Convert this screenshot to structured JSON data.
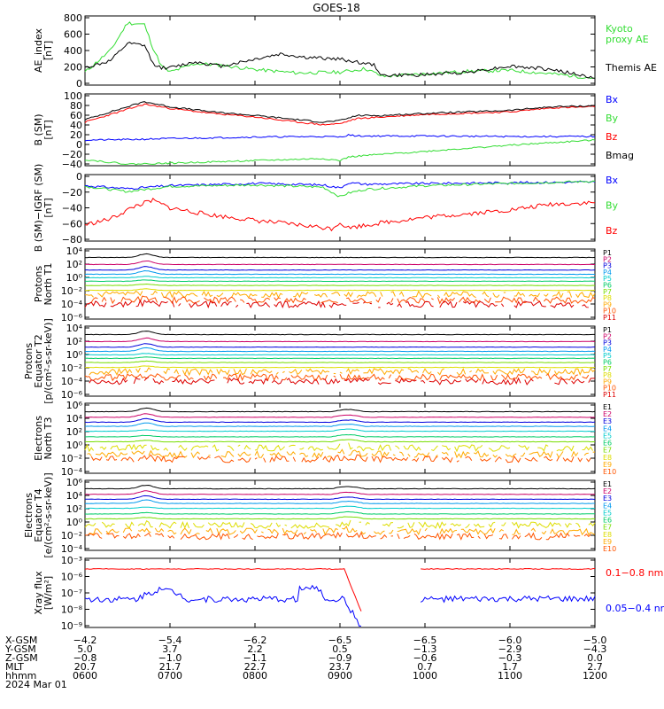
{
  "title": "GOES-18",
  "colors": {
    "black": "#000000",
    "red": "#ff0000",
    "green": "#33dd33",
    "blue": "#0000ff",
    "P": [
      "#000000",
      "#cc0066",
      "#0000dd",
      "#0099ee",
      "#00cccc",
      "#00cc66",
      "#77dd00",
      "#dddd00",
      "#ffaa00",
      "#ff5500",
      "#dd0000"
    ],
    "E": [
      "#000000",
      "#cc0066",
      "#0000dd",
      "#0099ee",
      "#00cccc",
      "#00cc66",
      "#77dd00",
      "#dddd00",
      "#ffaa00",
      "#ff5500",
      "#cc0000"
    ]
  },
  "panels": [
    {
      "id": "ae",
      "ylabel": [
        "AE_index",
        "[nT]"
      ],
      "ticks": [
        "800",
        "600",
        "400",
        "200",
        "0"
      ],
      "labels": [
        {
          "t": "Kyoto",
          "c": "green"
        },
        {
          "t": "proxy AE",
          "c": "green"
        },
        {
          "t": "Themis AE",
          "c": "black"
        }
      ]
    },
    {
      "id": "bsm",
      "ylabel": [
        "B (SM)",
        "[nT]"
      ],
      "ticks": [
        "100",
        "80",
        "60",
        "40",
        "20",
        "0",
        "−20",
        "−40"
      ],
      "labels": [
        {
          "t": "Bx",
          "c": "blue"
        },
        {
          "t": "By",
          "c": "green"
        },
        {
          "t": "Bz",
          "c": "red"
        },
        {
          "t": "Bmag",
          "c": "black"
        }
      ]
    },
    {
      "id": "bigrf",
      "ylabel": [
        "B (SM)−IGRF (SM)",
        "[nT]"
      ],
      "ticks": [
        "0",
        "−20",
        "−40",
        "−60",
        "−80"
      ],
      "labels": [
        {
          "t": "Bx",
          "c": "blue"
        },
        {
          "t": "By",
          "c": "green"
        },
        {
          "t": "Bz",
          "c": "red"
        }
      ]
    },
    {
      "id": "pn",
      "ylabel": [
        "Protons",
        "North T1"
      ],
      "ticks": [
        "10⁴",
        "10²",
        "10⁰",
        "10⁻²",
        "10⁻⁴",
        "10⁻⁶"
      ],
      "labels": [
        "P1",
        "P2",
        "P3",
        "P4",
        "P5",
        "P6",
        "P7",
        "P8",
        "P9",
        "P10",
        "P11"
      ]
    },
    {
      "id": "pe",
      "ylabel": [
        "Protons",
        "Equator T2",
        "[p/(cm²-s-sr-keV)]"
      ],
      "ticks": [
        "10⁴",
        "10²",
        "10⁰",
        "10⁻²",
        "10⁻⁴",
        "10⁻⁶"
      ],
      "labels": [
        "P1",
        "P2",
        "P3",
        "P4",
        "P5",
        "P6",
        "P7",
        "P8",
        "P9",
        "P10",
        "P11"
      ]
    },
    {
      "id": "en",
      "ylabel": [
        "Electrons",
        "North T3"
      ],
      "ticks": [
        "10⁶",
        "10⁴",
        "10²",
        "10⁰",
        "10⁻²",
        "10⁻⁴"
      ],
      "labels": [
        "E1",
        "E2",
        "E3",
        "E4",
        "E5",
        "E6",
        "E7",
        "E8",
        "E9",
        "E10"
      ]
    },
    {
      "id": "ee",
      "ylabel": [
        "Electrons",
        "Equator T4",
        "[e/(cm²-s-sr-keV)]"
      ],
      "ticks": [
        "10⁶",
        "10⁴",
        "10²",
        "10⁰",
        "10⁻²",
        "10⁻⁴"
      ],
      "labels": [
        "E1",
        "E2",
        "E3",
        "E4",
        "E5",
        "E6",
        "E7",
        "E8",
        "E9",
        "E10"
      ]
    },
    {
      "id": "xr",
      "ylabel": [
        "Xray flux",
        "[W/m²]"
      ],
      "ticks": [
        "10⁻³",
        "10⁻⁶",
        "10⁻⁷",
        "10⁻⁸",
        "10⁻⁹"
      ],
      "labels": [
        {
          "t": "0.1−0.8 nm",
          "c": "red"
        },
        {
          "t": "0.05−0.4 nm",
          "c": "blue"
        }
      ]
    }
  ],
  "ephemeris": {
    "rows": [
      "X-GSM",
      "Y-GSM",
      "Z-GSM",
      "MLT",
      "hhmm"
    ],
    "date": "2024 Mar 01",
    "columns": [
      [
        "−4.2",
        "5.0",
        "−0.8",
        "20.7",
        "0600"
      ],
      [
        "−5.4",
        "3.7",
        "−1.0",
        "21.7",
        "0700"
      ],
      [
        "−6.2",
        "2.2",
        "−1.1",
        "22.7",
        "0800"
      ],
      [
        "−6.5",
        "0.5",
        "−0.9",
        "23.7",
        "0900"
      ],
      [
        "−6.5",
        "−1.3",
        "−0.6",
        "0.7",
        "1000"
      ],
      [
        "−6.0",
        "−2.9",
        "−0.3",
        "1.7",
        "1100"
      ],
      [
        "−5.0",
        "−4.3",
        "0.0",
        "2.7",
        "1200"
      ]
    ]
  },
  "chart_data": {
    "type": "line",
    "title": "GOES-18",
    "x": [
      "0600",
      "0700",
      "0800",
      "0900",
      "1000",
      "1100",
      "1200"
    ],
    "panels": [
      {
        "name": "AE_index",
        "ylim": [
          0,
          800
        ],
        "series": [
          {
            "name": "Kyoto proxy AE",
            "color": "green",
            "x": [
              0,
              0.3,
              0.5,
              0.7,
              0.8,
              0.9,
              1.0,
              1.3,
              1.6,
              2.0,
              2.5,
              3.0,
              3.3,
              3.5,
              4.0,
              4.5,
              5.0,
              5.5,
              6.0
            ],
            "values": [
              150,
              400,
              720,
              700,
              430,
              220,
              150,
              250,
              230,
              180,
              140,
              150,
              190,
              100,
              130,
              160,
              170,
              130,
              80
            ]
          },
          {
            "name": "Themis AE",
            "color": "black",
            "x": [
              0,
              0.3,
              0.5,
              0.7,
              0.8,
              0.9,
              1.0,
              1.3,
              1.6,
              2.0,
              2.3,
              2.6,
              3.0,
              3.3,
              3.4,
              3.5,
              4.0,
              4.5,
              5.0,
              5.5,
              6.0
            ],
            "values": [
              200,
              280,
              480,
              460,
              250,
              200,
              200,
              270,
              220,
              300,
              360,
              320,
              300,
              250,
              230,
              110,
              120,
              150,
              220,
              180,
              80
            ]
          }
        ]
      },
      {
        "name": "B (SM)",
        "ylim": [
          -40,
          100
        ],
        "series": [
          {
            "name": "Bx",
            "color": "blue",
            "x": [
              0,
              0.5,
              1.0,
              2.0,
              2.8,
              3.0,
              3.1,
              3.2,
              4.0,
              5.0,
              6.0
            ],
            "values": [
              10,
              11,
              13,
              16,
              17,
              16,
              20,
              18,
              18,
              17,
              17
            ]
          },
          {
            "name": "By",
            "color": "green",
            "x": [
              0,
              0.5,
              1.0,
              2.0,
              2.8,
              3.0,
              3.1,
              3.3,
              4.0,
              5.0,
              6.0
            ],
            "values": [
              -28,
              -37,
              -35,
              -30,
              -26,
              -30,
              -23,
              -20,
              -12,
              0,
              10
            ]
          },
          {
            "name": "Bz",
            "color": "red",
            "x": [
              0,
              0.5,
              0.7,
              1.0,
              1.5,
              2.0,
              2.5,
              2.8,
              3.0,
              3.2,
              3.5,
              4.0,
              5.0,
              5.5,
              6.0
            ],
            "values": [
              45,
              70,
              80,
              72,
              62,
              55,
              45,
              40,
              42,
              52,
              55,
              60,
              65,
              73,
              75
            ]
          },
          {
            "name": "Bmag",
            "color": "black",
            "x": [
              0,
              0.5,
              0.7,
              1.0,
              1.5,
              2.0,
              2.5,
              2.8,
              3.0,
              3.2,
              3.5,
              4.0,
              5.0,
              5.5,
              6.0
            ],
            "values": [
              50,
              75,
              85,
              75,
              65,
              58,
              50,
              45,
              48,
              58,
              58,
              62,
              68,
              75,
              77
            ]
          }
        ]
      },
      {
        "name": "B (SM)-IGRF (SM)",
        "ylim": [
          -80,
          10
        ],
        "series": [
          {
            "name": "Bx",
            "color": "blue",
            "x": [
              0,
              0.5,
              1.0,
              2.0,
              2.8,
              3.0,
              3.1,
              3.3,
              4.0,
              5.0,
              6.0
            ],
            "values": [
              -5,
              -9,
              -5,
              -2,
              -4,
              -8,
              -1,
              -3,
              -2,
              -1,
              0
            ]
          },
          {
            "name": "By",
            "color": "green",
            "x": [
              0,
              0.5,
              1.0,
              2.0,
              2.8,
              3.0,
              3.1,
              3.3,
              4.0,
              5.0,
              6.0
            ],
            "values": [
              -6,
              -13,
              -6,
              -4,
              -7,
              -20,
              -15,
              -10,
              -5,
              -2,
              1
            ]
          },
          {
            "name": "Bz",
            "color": "red",
            "x": [
              0,
              0.3,
              0.6,
              0.8,
              1.0,
              1.5,
              2.0,
              2.5,
              2.9,
              3.0,
              3.1,
              3.5,
              4.0,
              5.0,
              5.5,
              6.0
            ],
            "values": [
              -58,
              -50,
              -32,
              -25,
              -35,
              -45,
              -52,
              -58,
              -63,
              -55,
              -62,
              -55,
              -48,
              -38,
              -30,
              -28
            ]
          }
        ]
      },
      {
        "name": "Protons North T1",
        "scale": "log",
        "ylim": [
          -6,
          4
        ],
        "levels": [
          2.8,
          1.8,
          1.0,
          0.4,
          -0.1,
          -0.6,
          -1.2,
          -1.9,
          -2.5,
          -3.3,
          -3.9
        ]
      },
      {
        "name": "Protons Equator T2",
        "scale": "log",
        "ylim": [
          -6,
          4
        ],
        "levels": [
          2.8,
          1.8,
          1.0,
          0.4,
          -0.1,
          -0.6,
          -1.2,
          -1.9,
          -2.5,
          -3.3,
          -3.9
        ]
      },
      {
        "name": "Electrons North T3",
        "scale": "log",
        "ylim": [
          -4,
          6
        ],
        "levels": [
          4.8,
          4.0,
          3.3,
          2.7,
          2.0,
          1.2,
          0.5,
          -0.4,
          -1.3,
          -2.0
        ]
      },
      {
        "name": "Electrons Equator T4",
        "scale": "log",
        "ylim": [
          -4,
          6
        ],
        "levels": [
          4.8,
          4.0,
          3.3,
          2.7,
          2.0,
          1.2,
          0.5,
          -0.4,
          -1.3,
          -2.0
        ]
      },
      {
        "name": "Xray flux",
        "scale": "log",
        "series": [
          {
            "name": "0.1−0.8 nm",
            "color": "red",
            "level": -6.0
          },
          {
            "name": "0.05−0.4 nm",
            "color": "blue",
            "level": -7.7
          }
        ]
      }
    ]
  }
}
